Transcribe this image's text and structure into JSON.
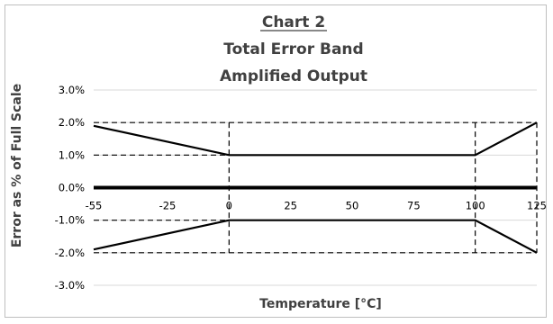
{
  "chart_data": {
    "type": "line",
    "title": "Chart 2",
    "subtitle_1": "Total Error Band",
    "subtitle_2": "Amplified Output",
    "xlabel": "Temperature [°C]",
    "ylabel": "Error as % of Full Scale",
    "xlim": [
      -55,
      125
    ],
    "ylim": [
      -3,
      3
    ],
    "x_ticks": [
      -55,
      -25,
      0,
      25,
      50,
      75,
      100,
      125
    ],
    "x_tick_labels": [
      "-55",
      "-25",
      "0",
      "25",
      "50",
      "75",
      "100",
      "125"
    ],
    "y_ticks": [
      3,
      2,
      1,
      0,
      -1,
      -2,
      -3
    ],
    "y_tick_labels": [
      "3.0%",
      "2.0%",
      "1.0%",
      "0.0%",
      "-1.0%",
      "-2.0%",
      "-3.0%"
    ],
    "grid": "horizontal",
    "series": [
      {
        "x": [
          -55,
          0,
          100,
          125
        ],
        "y": [
          1.9,
          1.0,
          1.0,
          2.0
        ],
        "color": "#000000"
      },
      {
        "x": [
          -55,
          0,
          100,
          125
        ],
        "y": [
          -1.9,
          -1.0,
          -1.0,
          -2.0
        ],
        "color": "#000000"
      }
    ],
    "reference_lines_dashed": [
      {
        "orientation": "horizontal",
        "y": 2.0
      },
      {
        "orientation": "horizontal",
        "y": 1.0,
        "x_range": [
          -55,
          0
        ]
      },
      {
        "orientation": "horizontal",
        "y": -1.0,
        "x_range": [
          -55,
          0
        ]
      },
      {
        "orientation": "horizontal",
        "y": -2.0
      },
      {
        "orientation": "vertical",
        "x": 0
      },
      {
        "orientation": "vertical",
        "x": 100
      },
      {
        "orientation": "vertical",
        "x": 125
      }
    ]
  }
}
